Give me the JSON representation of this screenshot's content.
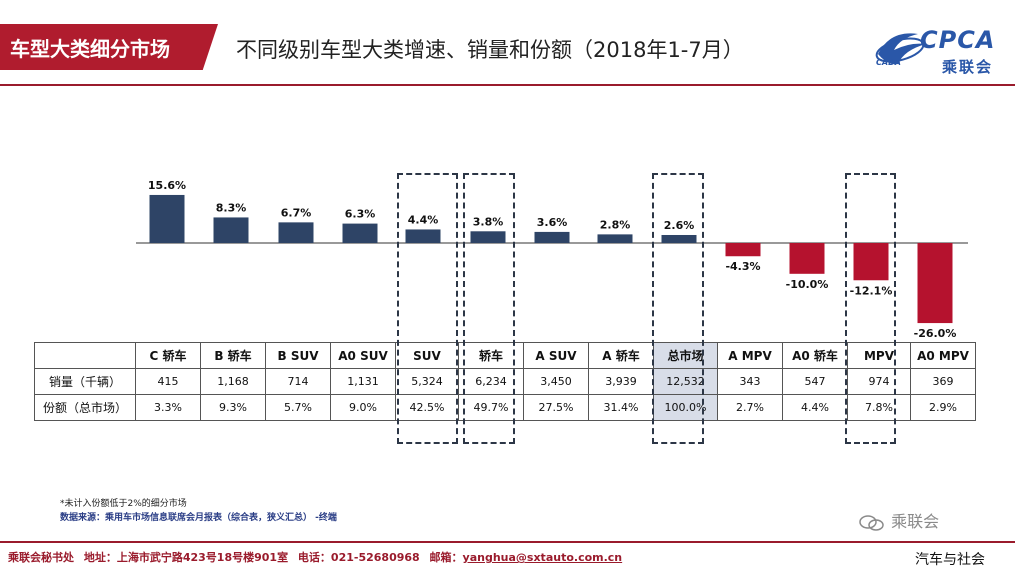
{
  "header": {
    "badge": "车型大类细分市场",
    "title": "不同级别车型大类增速、销量和份额（2018年1-7月）",
    "logo_text": "CPCA",
    "logo_cn": "乘联会",
    "logo_small": "CADA"
  },
  "chart_data": {
    "type": "bar",
    "categories": [
      "C 轿车",
      "B 轿车",
      "B SUV",
      "A0 SUV",
      "SUV",
      "轿车",
      "A SUV",
      "A 轿车",
      "总市场",
      "A MPV",
      "A0 轿车",
      "MPV",
      "A0 MPV"
    ],
    "values": [
      15.6,
      8.3,
      6.7,
      6.3,
      4.4,
      3.8,
      3.6,
      2.8,
      2.6,
      -4.3,
      -10.0,
      -12.1,
      -26.0
    ],
    "value_labels": [
      "15.6%",
      "8.3%",
      "6.7%",
      "6.3%",
      "4.4%",
      "3.8%",
      "3.6%",
      "2.8%",
      "2.6%",
      "-4.3%",
      "-10.0%",
      "-12.1%",
      "-26.0%"
    ],
    "unit": "%",
    "colors": {
      "positive": "#2e4466",
      "negative": "#b5122e"
    },
    "highlighted": [
      "SUV",
      "轿车",
      "总市场",
      "MPV"
    ]
  },
  "table": {
    "corner": "",
    "rows": [
      {
        "label": "销量（千辆）",
        "values": [
          "415",
          "1,168",
          "714",
          "1,131",
          "5,324",
          "6,234",
          "3,450",
          "3,939",
          "12,532",
          "343",
          "547",
          "974",
          "369"
        ]
      },
      {
        "label": "份额（总市场）",
        "values": [
          "3.3%",
          "9.3%",
          "5.7%",
          "9.0%",
          "42.5%",
          "49.7%",
          "27.5%",
          "31.4%",
          "100.0%",
          "2.7%",
          "4.4%",
          "7.8%",
          "2.9%"
        ]
      }
    ]
  },
  "footnotes": {
    "note": "*未计入份额低于2%的细分市场",
    "source": "数据来源：乘用车市场信息联席会月报表（综合表，狭义汇总） -终端"
  },
  "watermark": "乘联会",
  "footer": {
    "org": "乘联会秘书处",
    "address_label": "地址：",
    "address": "上海市武宁路423号18号楼901室",
    "phone_label": "电话：",
    "phone": "021-52680968",
    "email_label": "邮箱：",
    "email": "yanghua@sxtauto.com.cn",
    "corner_text": "汽车与社会"
  }
}
